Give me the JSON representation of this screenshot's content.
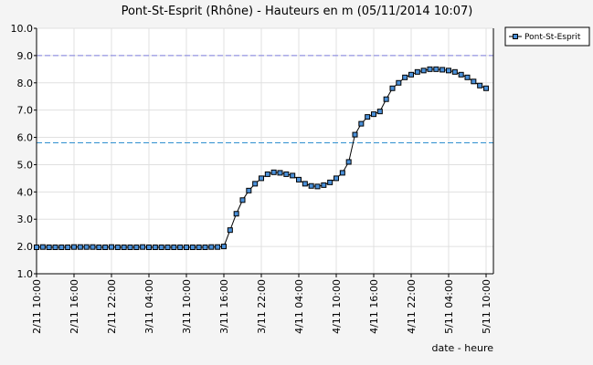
{
  "chart_data": {
    "type": "line",
    "title": "Pont-St-Esprit (Rhône) - Hauteurs en m (05/11/2014 10:07)",
    "x_label": "date - heure",
    "categories": [
      "2/11 10:00",
      null,
      null,
      null,
      null,
      null,
      "2/11 16:00",
      null,
      null,
      null,
      null,
      null,
      "2/11 22:00",
      null,
      null,
      null,
      null,
      null,
      "3/11 04:00",
      null,
      null,
      null,
      null,
      null,
      "3/11 10:00",
      null,
      null,
      null,
      null,
      null,
      "3/11 16:00",
      null,
      null,
      null,
      null,
      null,
      "3/11 22:00",
      null,
      null,
      null,
      null,
      null,
      "4/11 04:00",
      null,
      null,
      null,
      null,
      null,
      "4/11 10:00",
      null,
      null,
      null,
      null,
      null,
      "4/11 16:00",
      null,
      null,
      null,
      null,
      null,
      "4/11 22:00",
      null,
      null,
      null,
      null,
      null,
      "5/11 04:00",
      null,
      null,
      null,
      null,
      null,
      "5/11 10:00"
    ],
    "series": [
      {
        "name": "Pont-St-Esprit",
        "color": "#4a90d9",
        "values": [
          1.97,
          1.98,
          1.97,
          1.97,
          1.97,
          1.97,
          1.98,
          1.98,
          1.98,
          1.98,
          1.97,
          1.97,
          1.98,
          1.97,
          1.97,
          1.97,
          1.97,
          1.98,
          1.97,
          1.97,
          1.97,
          1.97,
          1.97,
          1.97,
          1.97,
          1.97,
          1.97,
          1.97,
          1.98,
          1.98,
          2.0,
          2.6,
          3.2,
          3.7,
          4.05,
          4.3,
          4.5,
          4.65,
          4.72,
          4.7,
          4.65,
          4.6,
          4.45,
          4.3,
          4.22,
          4.2,
          4.25,
          4.35,
          4.5,
          4.7,
          5.1,
          6.1,
          6.5,
          6.75,
          6.85,
          6.95,
          7.4,
          7.8,
          8.0,
          8.2,
          8.3,
          8.4,
          8.45,
          8.5,
          8.5,
          8.48,
          8.45,
          8.4,
          8.3,
          8.2,
          8.05,
          7.9,
          7.8
        ]
      }
    ],
    "ylim": [
      1.0,
      10.0
    ],
    "yticks": [
      {
        "value": 1,
        "label": "1.0"
      },
      {
        "value": 2,
        "label": "2.0"
      },
      {
        "value": 3,
        "label": "3.0"
      },
      {
        "value": 4,
        "label": "4.0"
      },
      {
        "value": 5,
        "label": "5.0"
      },
      {
        "value": 6,
        "label": "6.0"
      },
      {
        "value": 7,
        "label": "7.0"
      },
      {
        "value": 8,
        "label": "8.0"
      },
      {
        "value": 9,
        "label": "9.0"
      },
      {
        "value": 10,
        "label": "10.0"
      }
    ],
    "grid": true,
    "reference_lines": [
      {
        "value": 9.0,
        "color": "#8080e0"
      },
      {
        "value": 5.8,
        "color": "#3090d0"
      }
    ],
    "legend": "top-right"
  }
}
